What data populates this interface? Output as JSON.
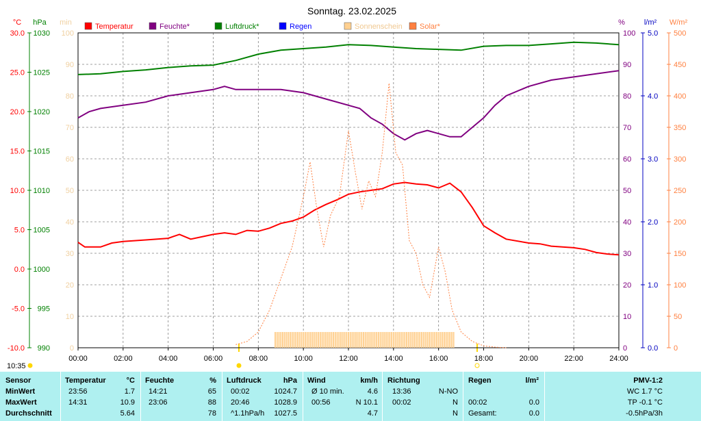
{
  "header": {
    "title": "Sonntag. 23.02.2025"
  },
  "legend": [
    {
      "label": "Temperatur",
      "color": "#ff0000"
    },
    {
      "label": "Feuchte*",
      "color": "#800080"
    },
    {
      "label": "Luftdruck*",
      "color": "#008000"
    },
    {
      "label": "Regen",
      "color": "#0000ff"
    },
    {
      "label": "Sonnenschein",
      "color": "#ffd090"
    },
    {
      "label": "Solar*",
      "color": "#ff8040"
    }
  ],
  "axes": {
    "temp_unit": "°C",
    "press_unit": "hPa",
    "sun_unit": "min",
    "hum_unit": "%",
    "rain_unit": "l/m²",
    "solar_unit": "W/m²",
    "temp_ticks": [
      "30.0",
      "25.0",
      "20.0",
      "15.0",
      "10.0",
      "5.0",
      "0.0",
      "-5.0",
      "-10.0"
    ],
    "press_ticks": [
      "1030",
      "1025",
      "1020",
      "1015",
      "1010",
      "1005",
      "1000",
      "995",
      "990"
    ],
    "sun_ticks": [
      "100",
      "90",
      "80",
      "70",
      "60",
      "50",
      "40",
      "30",
      "20",
      "10",
      "0"
    ],
    "hum_ticks": [
      "100",
      "90",
      "80",
      "70",
      "60",
      "50",
      "40",
      "30",
      "20",
      "10",
      "0"
    ],
    "rain_ticks": [
      "5.0",
      "4.0",
      "3.0",
      "2.0",
      "1.0",
      "0.0"
    ],
    "solar_ticks": [
      "500",
      "450",
      "400",
      "350",
      "300",
      "250",
      "200",
      "150",
      "100",
      "50",
      "0"
    ],
    "x_ticks": [
      "00:00",
      "02:00",
      "04:00",
      "06:00",
      "08:00",
      "10:00",
      "12:00",
      "14:00",
      "16:00",
      "18:00",
      "20:00",
      "22:00",
      "24:00"
    ],
    "sunrise_label": "10:35"
  },
  "chart_data": {
    "type": "line",
    "title": "Sonntag. 23.02.2025",
    "x_unit": "hours",
    "xlim": [
      0,
      24
    ],
    "grid": true,
    "legend_position": "top",
    "series": [
      {
        "name": "Temperatur",
        "axis": "left",
        "ylim": [
          -10,
          30
        ],
        "color": "#ff0000",
        "x": [
          0,
          0.3,
          1,
          1.5,
          2,
          3,
          4,
          4.5,
          5,
          5.5,
          6,
          6.5,
          7,
          7.5,
          8,
          8.5,
          9,
          9.5,
          10,
          10.5,
          11,
          11.5,
          12,
          12.5,
          13,
          13.5,
          14,
          14.5,
          15,
          15.5,
          16,
          16.5,
          17,
          17.5,
          18,
          18.5,
          19,
          20,
          20.5,
          21,
          21.5,
          22,
          22.5,
          23,
          23.5,
          24
        ],
        "values": [
          3.4,
          2.8,
          2.8,
          3.3,
          3.5,
          3.7,
          3.9,
          4.4,
          3.8,
          4.1,
          4.4,
          4.6,
          4.4,
          4.9,
          4.8,
          5.2,
          5.8,
          6.1,
          6.6,
          7.5,
          8.2,
          8.8,
          9.5,
          9.8,
          10.0,
          10.2,
          10.8,
          11.0,
          10.8,
          10.7,
          10.3,
          10.9,
          9.8,
          7.8,
          5.5,
          4.6,
          3.8,
          3.3,
          3.2,
          2.9,
          2.8,
          2.7,
          2.5,
          2.1,
          1.9,
          1.8
        ]
      },
      {
        "name": "Feuchte*",
        "axis": "right",
        "ylim": [
          0,
          100
        ],
        "color": "#800080",
        "x": [
          0,
          0.5,
          1,
          2,
          3,
          4,
          5,
          6,
          6.5,
          7,
          8,
          9,
          10,
          11,
          12,
          12.5,
          13,
          13.5,
          14,
          14.5,
          15,
          15.5,
          16,
          16.5,
          17,
          17.5,
          18,
          18.5,
          19,
          20,
          21,
          22,
          23,
          24
        ],
        "values": [
          73,
          75,
          76,
          77,
          78,
          80,
          81,
          82,
          83,
          82,
          82,
          82,
          81,
          79,
          77,
          76,
          73,
          71,
          68,
          66,
          68,
          69,
          68,
          67,
          67,
          70,
          73,
          77,
          80,
          83,
          85,
          86,
          87,
          88
        ]
      },
      {
        "name": "Luftdruck*",
        "axis": "left2",
        "ylim": [
          990,
          1030
        ],
        "color": "#008000",
        "x": [
          0,
          1,
          2,
          3,
          4,
          5,
          6,
          7,
          8,
          9,
          10,
          11,
          12,
          13,
          14,
          15,
          16,
          17,
          18,
          19,
          20,
          21,
          22,
          23,
          24
        ],
        "values": [
          1024.7,
          1024.8,
          1025.1,
          1025.3,
          1025.6,
          1025.8,
          1025.9,
          1026.5,
          1027.3,
          1027.8,
          1028.0,
          1028.2,
          1028.5,
          1028.4,
          1028.2,
          1028.0,
          1027.9,
          1027.8,
          1028.3,
          1028.4,
          1028.4,
          1028.6,
          1028.8,
          1028.7,
          1028.5
        ]
      },
      {
        "name": "Solar*",
        "axis": "right3",
        "ylim": [
          0,
          500
        ],
        "color": "#ff8040",
        "x": [
          7,
          7.5,
          8,
          8.5,
          9,
          9.5,
          10,
          10.3,
          10.6,
          10.9,
          11.2,
          11.6,
          12,
          12.3,
          12.6,
          12.9,
          13.2,
          13.5,
          13.8,
          14.1,
          14.4,
          14.7,
          15,
          15.3,
          15.6,
          16,
          16.3,
          16.6,
          17,
          17.5,
          18,
          18.5,
          19
        ],
        "values": [
          5,
          10,
          25,
          60,
          110,
          160,
          240,
          295,
          220,
          160,
          210,
          240,
          345,
          280,
          220,
          265,
          240,
          310,
          420,
          310,
          290,
          170,
          150,
          100,
          80,
          160,
          120,
          60,
          25,
          10,
          3,
          1,
          0
        ]
      },
      {
        "name": "Sonnenschein",
        "axis": "right0",
        "ylim": [
          0,
          100
        ],
        "color": "#ffd090",
        "bars_from": 8.75,
        "bars_to": 16.75,
        "value": 5
      }
    ]
  },
  "table": {
    "headers": {
      "sensor": "Sensor",
      "temp": "Temperatur",
      "temp_unit": "°C",
      "hum": "Feuchte",
      "hum_unit": "%",
      "press": "Luftdruck",
      "press_unit": "hPa",
      "wind": "Wind",
      "wind_unit": "km/h",
      "dir": "Richtung",
      "rain": "Regen",
      "rain_unit": "l/m²",
      "pmv": "PMV-1:2"
    },
    "rows": [
      {
        "label": "MinWert",
        "temp_time": "23:56",
        "temp_val": "1.7",
        "hum_time": "14:21",
        "hum_val": "65",
        "press_time": "00:02",
        "press_val": "1024.7",
        "wind_time": "Ø 10 min.",
        "wind_val": "4.6",
        "dir_time": "13:36",
        "dir_val": "N-NO",
        "rain_time": "",
        "rain_val": "",
        "pmv": "WC 1.7 °C"
      },
      {
        "label": "MaxWert",
        "temp_time": "14:31",
        "temp_val": "10.9",
        "hum_time": "23:06",
        "hum_val": "88",
        "press_time": "20:46",
        "press_val": "1028.9",
        "wind_time": "00:56",
        "wind_val": "N 10.1",
        "dir_time": "00:02",
        "dir_val": "N",
        "rain_time": "00:02",
        "rain_val": "0.0",
        "pmv": "TP -0.1 °C"
      },
      {
        "label": "Durchschnitt",
        "temp_time": "",
        "temp_val": "5.64",
        "hum_time": "",
        "hum_val": "78",
        "press_time": "^1.1hPa/h",
        "press_val": "1027.5",
        "wind_time": "",
        "wind_val": "4.7",
        "dir_time": "",
        "dir_val": "N",
        "rain_time": "Gesamt:",
        "rain_val": "0.0",
        "pmv": "-0.5hPa/3h"
      }
    ]
  }
}
